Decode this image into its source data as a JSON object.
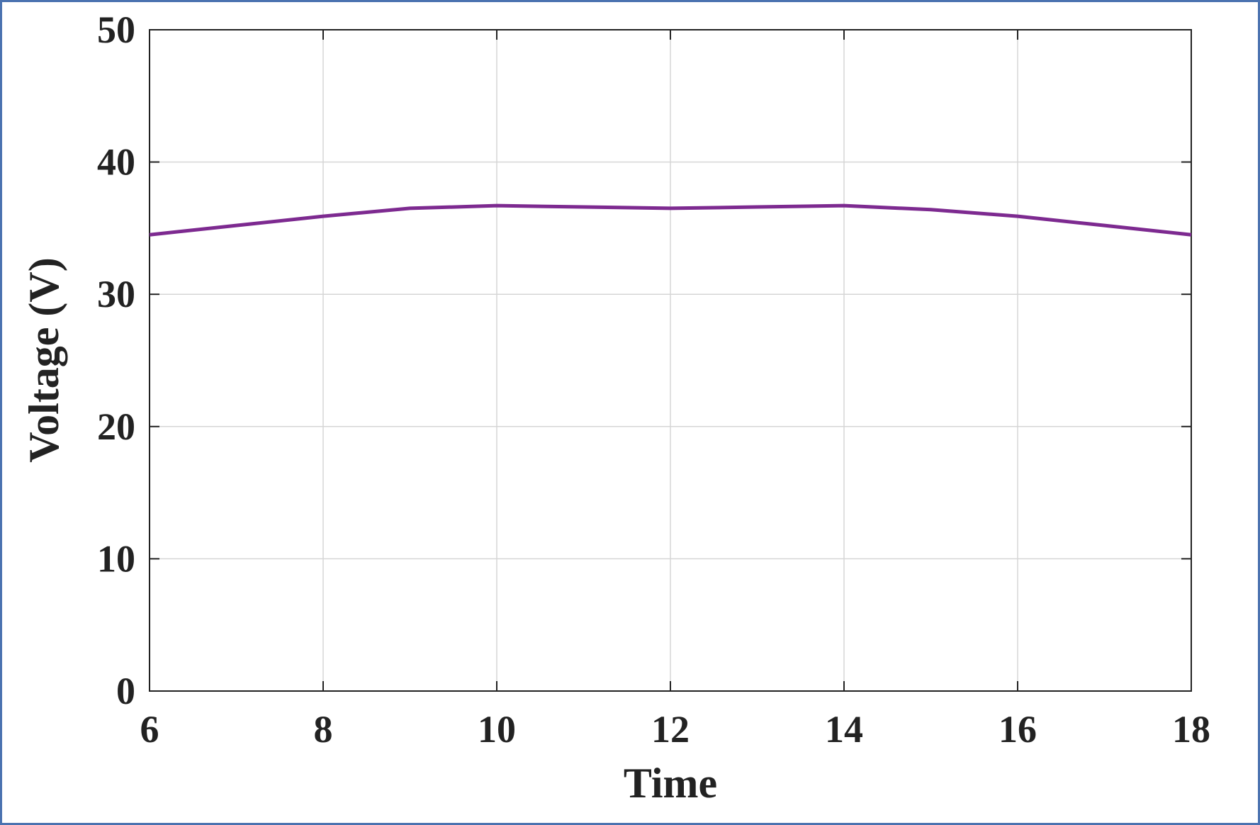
{
  "chart_data": {
    "type": "line",
    "x_label": "Time",
    "y_label": "Voltage (V)",
    "x": [
      6,
      7,
      8,
      9,
      10,
      11,
      12,
      13,
      14,
      15,
      16,
      17,
      18
    ],
    "series": [
      {
        "color": "#7d2a90",
        "values": [
          34.5,
          35.2,
          35.9,
          36.5,
          36.7,
          36.6,
          36.5,
          36.6,
          36.7,
          36.4,
          35.9,
          35.2,
          34.5
        ]
      }
    ],
    "xlim": [
      6,
      18
    ],
    "xticks": [
      6,
      8,
      10,
      12,
      14,
      16,
      18
    ],
    "ylim": [
      0,
      50
    ],
    "yticks": [
      0,
      10,
      20,
      30,
      40,
      50
    ],
    "grid": true
  }
}
